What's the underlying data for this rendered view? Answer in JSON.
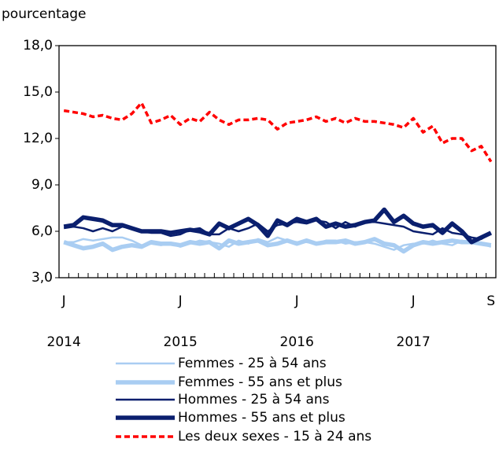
{
  "chart_data": {
    "type": "line",
    "y_label": "pourcentage",
    "categories": [
      "J",
      null,
      null,
      null,
      null,
      null,
      null,
      null,
      null,
      null,
      null,
      null,
      "J",
      null,
      null,
      null,
      null,
      null,
      null,
      null,
      null,
      null,
      null,
      null,
      "J",
      null,
      null,
      null,
      null,
      null,
      null,
      null,
      null,
      null,
      null,
      null,
      "J",
      null,
      null,
      null,
      null,
      null,
      null,
      null,
      "S"
    ],
    "years": [
      "2014",
      "2015",
      "2016",
      "2017"
    ],
    "ylim": [
      3,
      18
    ],
    "yticks": [
      {
        "value": 3,
        "label": "3,0"
      },
      {
        "value": 6,
        "label": "6,0"
      },
      {
        "value": 9,
        "label": "9,0"
      },
      {
        "value": 12,
        "label": "12,0"
      },
      {
        "value": 15,
        "label": "15,0"
      },
      {
        "value": 18,
        "label": "18,0"
      }
    ],
    "grid": false,
    "legend": "bottom",
    "series": [
      {
        "name": "Femmes - 25 à 54 ans",
        "color": "#a9cdf2",
        "line_width": 2.5,
        "dashed": false,
        "values": [
          5.3,
          5.3,
          5.5,
          5.4,
          5.5,
          5.6,
          5.6,
          5.4,
          5.1,
          5.2,
          5.1,
          5.2,
          5.0,
          5.2,
          5.4,
          5.3,
          5.2,
          5.0,
          5.4,
          5.2,
          5.5,
          5.3,
          5.6,
          5.4,
          5.3,
          5.3,
          5.2,
          5.4,
          5.4,
          5.2,
          5.3,
          5.3,
          5.2,
          5.0,
          4.8,
          5.1,
          5.2,
          5.2,
          5.4,
          5.2,
          5.1,
          5.4,
          5.3,
          5.2,
          5.0
        ]
      },
      {
        "name": "Femmes - 55 ans et plus",
        "color": "#a9cdf2",
        "line_width": 5.5,
        "dashed": false,
        "values": [
          5.3,
          5.1,
          4.9,
          5.0,
          5.2,
          4.8,
          5.0,
          5.1,
          5.0,
          5.3,
          5.2,
          5.2,
          5.1,
          5.3,
          5.2,
          5.3,
          4.9,
          5.4,
          5.2,
          5.3,
          5.4,
          5.1,
          5.2,
          5.4,
          5.2,
          5.4,
          5.2,
          5.3,
          5.3,
          5.4,
          5.2,
          5.3,
          5.5,
          5.2,
          5.1,
          4.7,
          5.1,
          5.3,
          5.2,
          5.3,
          5.4,
          5.3,
          5.3,
          5.2,
          5.1
        ]
      },
      {
        "name": "Hommes - 25 à 54 ans",
        "color": "#0a1f6e",
        "line_width": 2.5,
        "dashed": false,
        "values": [
          6.2,
          6.3,
          6.2,
          6.0,
          6.2,
          6.0,
          6.3,
          6.2,
          6.0,
          5.9,
          5.9,
          5.7,
          5.8,
          6.1,
          6.2,
          5.8,
          5.8,
          6.2,
          6.0,
          6.2,
          6.5,
          6.0,
          6.4,
          6.5,
          6.6,
          6.5,
          6.7,
          6.6,
          6.2,
          6.6,
          6.3,
          6.6,
          6.6,
          6.5,
          6.4,
          6.3,
          6.0,
          5.9,
          5.8,
          6.2,
          5.9,
          5.8,
          5.6,
          5.5,
          5.9
        ]
      },
      {
        "name": "Hommes - 55 ans et plus",
        "color": "#0a1f6e",
        "line_width": 5.5,
        "dashed": false,
        "values": [
          6.3,
          6.4,
          6.9,
          6.8,
          6.7,
          6.4,
          6.4,
          6.2,
          6.0,
          6.0,
          6.0,
          5.9,
          6.0,
          6.1,
          6.0,
          5.8,
          6.5,
          6.2,
          6.5,
          6.8,
          6.4,
          5.7,
          6.7,
          6.4,
          6.8,
          6.6,
          6.8,
          6.3,
          6.5,
          6.3,
          6.4,
          6.6,
          6.7,
          7.4,
          6.6,
          7.0,
          6.5,
          6.3,
          6.4,
          5.9,
          6.5,
          6.0,
          5.3,
          5.6,
          5.9
        ]
      },
      {
        "name": "Les deux sexes - 15 à 24 ans",
        "color": "#ff0000",
        "line_width": 3.5,
        "dashed": true,
        "values": [
          13.8,
          13.7,
          13.6,
          13.4,
          13.5,
          13.3,
          13.2,
          13.6,
          14.3,
          13.0,
          13.2,
          13.5,
          12.9,
          13.3,
          13.1,
          13.7,
          13.2,
          12.9,
          13.2,
          13.2,
          13.3,
          13.2,
          12.6,
          13.0,
          13.1,
          13.2,
          13.4,
          13.1,
          13.3,
          13.0,
          13.3,
          13.1,
          13.1,
          13.0,
          12.9,
          12.7,
          13.3,
          12.4,
          12.8,
          11.7,
          12.0,
          12.0,
          11.2,
          11.5,
          10.5
        ]
      }
    ]
  }
}
